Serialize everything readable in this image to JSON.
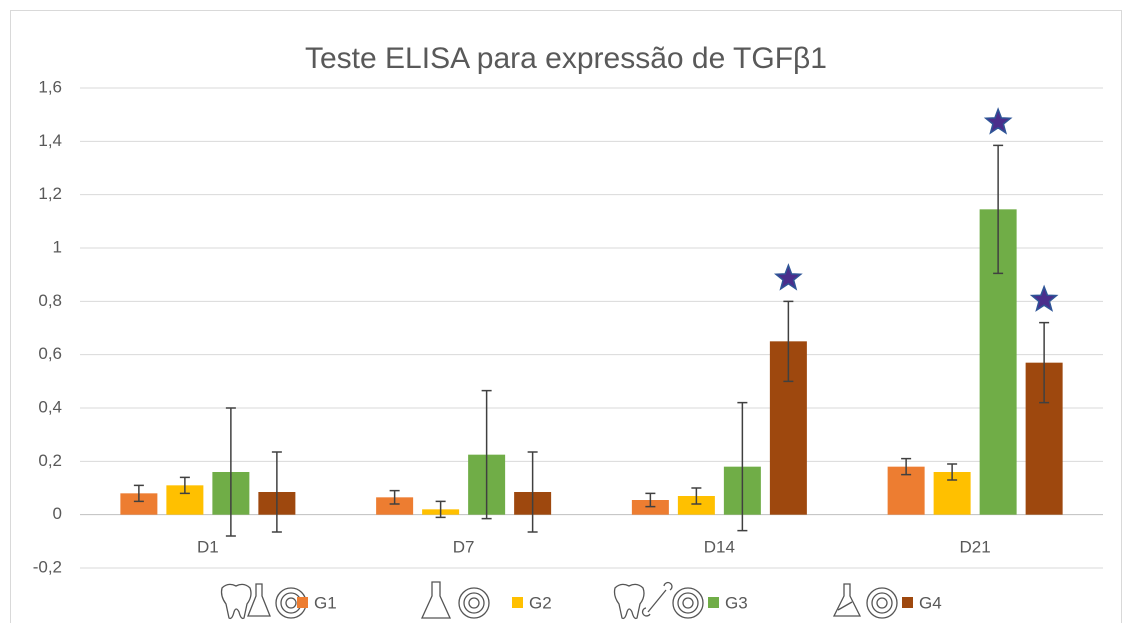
{
  "chart_data": {
    "type": "bar",
    "title": "Teste ELISA para expressão de TGFβ1",
    "categories": [
      "D1",
      "D7",
      "D14",
      "D21"
    ],
    "series": [
      {
        "name": "G1",
        "color": "#ED7D31",
        "values": [
          0.08,
          0.065,
          0.055,
          0.18
        ],
        "errors": [
          0.03,
          0.025,
          0.025,
          0.03
        ]
      },
      {
        "name": "G2",
        "color": "#FFC000",
        "values": [
          0.11,
          0.02,
          0.07,
          0.16
        ],
        "errors": [
          0.03,
          0.03,
          0.03,
          0.03
        ]
      },
      {
        "name": "G3",
        "color": "#70AD47",
        "values": [
          0.16,
          0.225,
          0.18,
          1.145
        ],
        "errors": [
          0.24,
          0.24,
          0.24,
          0.24
        ]
      },
      {
        "name": "G4",
        "color": "#9E480E",
        "values": [
          0.085,
          0.085,
          0.65,
          0.57
        ],
        "errors": [
          0.15,
          0.15,
          0.15,
          0.15
        ]
      }
    ],
    "ylim": [
      -0.2,
      1.6
    ],
    "yticks": [
      {
        "value": -0.2,
        "label": "-0,2"
      },
      0,
      {
        "value": 0.2,
        "label": "0,2"
      },
      {
        "value": 0.4,
        "label": "0,4"
      },
      {
        "value": 0.6,
        "label": "0,6"
      },
      {
        "value": 0.8,
        "label": "0,8"
      },
      1,
      {
        "value": 1.2,
        "label": "1,2"
      },
      {
        "value": 1.4,
        "label": "1,4"
      },
      {
        "value": 1.6,
        "label": "1,6"
      }
    ],
    "grid": true
  }
}
